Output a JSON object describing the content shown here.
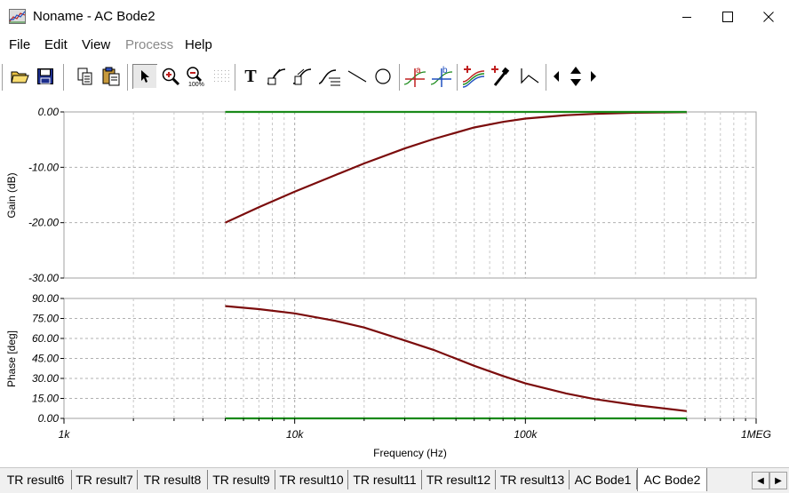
{
  "window": {
    "title": "Noname - AC Bode2",
    "minimize_label": "—",
    "maximize_label": "☐",
    "close_label": "✕"
  },
  "menu": {
    "items": [
      {
        "label": "File",
        "enabled": true
      },
      {
        "label": "Edit",
        "enabled": true
      },
      {
        "label": "View",
        "enabled": true
      },
      {
        "label": "Process",
        "enabled": false
      },
      {
        "label": "Help",
        "enabled": true
      }
    ]
  },
  "toolbar": {
    "text_tool_glyph": "T",
    "cursor_a_label": "a",
    "cursor_b_label": "b"
  },
  "chart_data": [
    {
      "type": "line",
      "x_scale": "log",
      "xlim": [
        1000,
        1000000
      ],
      "x_tick_labels": [
        "1k",
        "10k",
        "100k",
        "1MEG"
      ],
      "xlabel": "Frequency (Hz)",
      "ylabel": "Gain (dB)",
      "ylim": [
        -30,
        0
      ],
      "y_tick_labels": [
        "0.00",
        "-10.00",
        "-20.00",
        "-30.00"
      ],
      "grid": true,
      "series": [
        {
          "color": "#7b0c0c",
          "x": [
            5000,
            7000,
            10000,
            15000,
            20000,
            30000,
            40000,
            60000,
            80000,
            100000,
            150000,
            200000,
            300000,
            500000
          ],
          "y": [
            -20.0,
            -17.2,
            -14.4,
            -11.4,
            -9.3,
            -6.6,
            -4.9,
            -2.8,
            -1.8,
            -1.2,
            -0.6,
            -0.35,
            -0.15,
            -0.05
          ]
        },
        {
          "color": "#1a8a1a",
          "x": [
            5000,
            500000
          ],
          "y": [
            0,
            0
          ]
        }
      ]
    },
    {
      "type": "line",
      "x_scale": "log",
      "xlim": [
        1000,
        1000000
      ],
      "x_tick_labels": [
        "1k",
        "10k",
        "100k",
        "1MEG"
      ],
      "xlabel": "Frequency (Hz)",
      "ylabel": "Phase [deg]",
      "ylim": [
        0,
        90
      ],
      "y_tick_labels": [
        "90.00",
        "75.00",
        "60.00",
        "45.00",
        "30.00",
        "15.00",
        "0.00"
      ],
      "grid": true,
      "series": [
        {
          "color": "#7b0c0c",
          "x": [
            5000,
            7000,
            10000,
            15000,
            20000,
            30000,
            40000,
            60000,
            80000,
            100000,
            150000,
            200000,
            300000,
            500000
          ],
          "y": [
            84.3,
            82.0,
            78.8,
            73.2,
            68.2,
            58.5,
            51.4,
            39.5,
            31.8,
            26.3,
            18.7,
            14.5,
            10.0,
            5.5
          ]
        },
        {
          "color": "#1a8a1a",
          "x": [
            5000,
            500000
          ],
          "y": [
            0,
            0
          ]
        }
      ]
    }
  ],
  "tabs": [
    {
      "label": "TR result6",
      "active": false
    },
    {
      "label": "TR result7",
      "active": false
    },
    {
      "label": "TR result8",
      "active": false
    },
    {
      "label": "TR result9",
      "active": false
    },
    {
      "label": "TR result10",
      "active": false
    },
    {
      "label": "TR result11",
      "active": false
    },
    {
      "label": "TR result12",
      "active": false
    },
    {
      "label": "TR result13",
      "active": false
    },
    {
      "label": "AC Bode1",
      "active": false
    },
    {
      "label": "AC Bode2",
      "active": true
    }
  ],
  "tab_nav": {
    "left": "◀",
    "right": "▶"
  }
}
